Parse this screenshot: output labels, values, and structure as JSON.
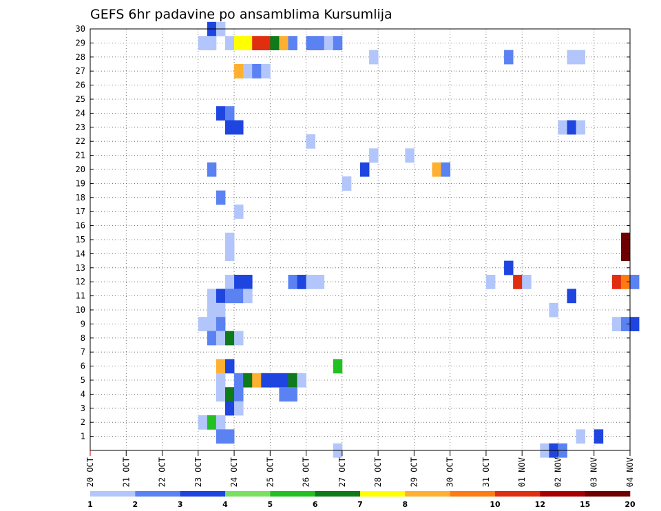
{
  "chart_data": {
    "type": "heatmap",
    "title": "GEFS 6hr padavine po ansamblima Kursumlija",
    "xlabel": "",
    "ylabel": "",
    "x_tick_labels": [
      "20 OCT",
      "21 OCT",
      "22 OCT",
      "23 OCT",
      "24 OCT",
      "25 OCT",
      "26 OCT",
      "27 OCT",
      "28 OCT",
      "29 OCT",
      "30 OCT",
      "31 OCT",
      "01 NOV",
      "02 NOV",
      "03 NOV",
      "04 NOV"
    ],
    "y_tick_labels": [
      "1",
      "2",
      "3",
      "4",
      "5",
      "6",
      "7",
      "8",
      "9",
      "10",
      "11",
      "12",
      "13",
      "14",
      "15",
      "16",
      "17",
      "18",
      "19",
      "20",
      "21",
      "22",
      "23",
      "24",
      "25",
      "26",
      "27",
      "28",
      "29",
      "30"
    ],
    "x_range": [
      "20 OCT 00h",
      "04 NOV 00h"
    ],
    "y_range": [
      0,
      30
    ],
    "grid": true,
    "colorbar": {
      "labels": [
        "1",
        "2",
        "3",
        "4",
        "5",
        "6",
        "7",
        "8",
        "10",
        "12",
        "15",
        "20"
      ],
      "colors": [
        "#b3c6fb",
        "#5b82f3",
        "#1f45e0",
        "#7be062",
        "#22c022",
        "#0e7a1a",
        "#ffff00",
        "#ffb030",
        "#ff7a10",
        "#e02e10",
        "#a80000",
        "#6e0000"
      ]
    },
    "cells_note": "each cell: [date-hour of 6h period start, ensemble member, precipitation class index 0-11 (0 = 1-2 mm ... 11 = >20 mm)]",
    "cells": [
      [
        "23 OCT 06h",
        30,
        2
      ],
      [
        "23 OCT 12h",
        30,
        0
      ],
      [
        "23 OCT 00h",
        29,
        0
      ],
      [
        "23 OCT 06h",
        29,
        0
      ],
      [
        "23 OCT 18h",
        29,
        0
      ],
      [
        "24 OCT 00h",
        29,
        6
      ],
      [
        "24 OCT 06h",
        29,
        6
      ],
      [
        "24 OCT 12h",
        29,
        9
      ],
      [
        "24 OCT 18h",
        29,
        9
      ],
      [
        "25 OCT 00h",
        29,
        5
      ],
      [
        "25 OCT 06h",
        29,
        7
      ],
      [
        "25 OCT 12h",
        29,
        1
      ],
      [
        "26 OCT 00h",
        29,
        1
      ],
      [
        "26 OCT 06h",
        29,
        1
      ],
      [
        "26 OCT 12h",
        29,
        0
      ],
      [
        "26 OCT 18h",
        29,
        1
      ],
      [
        "27 OCT 18h",
        28,
        0
      ],
      [
        "31 OCT 12h",
        28,
        1
      ],
      [
        "02 NOV 06h",
        28,
        0
      ],
      [
        "02 NOV 12h",
        28,
        0
      ],
      [
        "24 OCT 00h",
        27,
        7
      ],
      [
        "24 OCT 06h",
        27,
        0
      ],
      [
        "24 OCT 12h",
        27,
        1
      ],
      [
        "24 OCT 18h",
        27,
        0
      ],
      [
        "23 OCT 12h",
        24,
        2
      ],
      [
        "23 OCT 18h",
        24,
        1
      ],
      [
        "23 OCT 18h",
        23,
        2
      ],
      [
        "24 OCT 00h",
        23,
        2
      ],
      [
        "02 NOV 00h",
        23,
        0
      ],
      [
        "02 NOV 06h",
        23,
        2
      ],
      [
        "02 NOV 12h",
        23,
        0
      ],
      [
        "26 OCT 00h",
        22,
        0
      ],
      [
        "27 OCT 18h",
        21,
        0
      ],
      [
        "28 OCT 18h",
        21,
        0
      ],
      [
        "23 OCT 06h",
        20,
        1
      ],
      [
        "27 OCT 12h",
        20,
        2
      ],
      [
        "29 OCT 12h",
        20,
        7
      ],
      [
        "29 OCT 18h",
        20,
        1
      ],
      [
        "27 OCT 00h",
        19,
        0
      ],
      [
        "23 OCT 12h",
        18,
        1
      ],
      [
        "24 OCT 00h",
        17,
        0
      ],
      [
        "23 OCT 18h",
        15,
        0
      ],
      [
        "03 NOV 18h",
        15,
        11
      ],
      [
        "23 OCT 18h",
        14,
        0
      ],
      [
        "03 NOV 18h",
        14,
        11
      ],
      [
        "31 OCT 12h",
        13,
        2
      ],
      [
        "23 OCT 18h",
        12,
        0
      ],
      [
        "24 OCT 00h",
        12,
        2
      ],
      [
        "24 OCT 06h",
        12,
        2
      ],
      [
        "25 OCT 12h",
        12,
        1
      ],
      [
        "25 OCT 18h",
        12,
        2
      ],
      [
        "26 OCT 00h",
        12,
        0
      ],
      [
        "26 OCT 06h",
        12,
        0
      ],
      [
        "31 OCT 00h",
        12,
        0
      ],
      [
        "31 OCT 18h",
        12,
        9
      ],
      [
        "01 NOV 00h",
        12,
        0
      ],
      [
        "03 NOV 12h",
        12,
        9
      ],
      [
        "03 NOV 18h",
        12,
        8
      ],
      [
        "04 NOV 00h",
        12,
        1
      ],
      [
        "23 OCT 06h",
        11,
        0
      ],
      [
        "23 OCT 12h",
        11,
        2
      ],
      [
        "23 OCT 18h",
        11,
        1
      ],
      [
        "24 OCT 00h",
        11,
        1
      ],
      [
        "24 OCT 06h",
        11,
        0
      ],
      [
        "02 NOV 06h",
        11,
        2
      ],
      [
        "23 OCT 06h",
        10,
        0
      ],
      [
        "23 OCT 12h",
        10,
        0
      ],
      [
        "01 NOV 18h",
        10,
        0
      ],
      [
        "23 OCT 00h",
        9,
        0
      ],
      [
        "23 OCT 06h",
        9,
        0
      ],
      [
        "23 OCT 12h",
        9,
        1
      ],
      [
        "03 NOV 12h",
        9,
        0
      ],
      [
        "03 NOV 18h",
        9,
        1
      ],
      [
        "04 NOV 00h",
        9,
        2
      ],
      [
        "23 OCT 06h",
        8,
        1
      ],
      [
        "23 OCT 12h",
        8,
        0
      ],
      [
        "23 OCT 18h",
        8,
        5
      ],
      [
        "24 OCT 00h",
        8,
        0
      ],
      [
        "23 OCT 12h",
        6,
        7
      ],
      [
        "23 OCT 18h",
        6,
        2
      ],
      [
        "26 OCT 18h",
        6,
        4
      ],
      [
        "23 OCT 12h",
        5,
        0
      ],
      [
        "24 OCT 00h",
        5,
        1
      ],
      [
        "24 OCT 06h",
        5,
        5
      ],
      [
        "24 OCT 12h",
        5,
        7
      ],
      [
        "24 OCT 18h",
        5,
        2
      ],
      [
        "25 OCT 00h",
        5,
        2
      ],
      [
        "25 OCT 06h",
        5,
        2
      ],
      [
        "25 OCT 12h",
        5,
        5
      ],
      [
        "25 OCT 18h",
        5,
        0
      ],
      [
        "23 OCT 12h",
        4,
        0
      ],
      [
        "23 OCT 18h",
        4,
        5
      ],
      [
        "24 OCT 00h",
        4,
        1
      ],
      [
        "25 OCT 06h",
        4,
        1
      ],
      [
        "25 OCT 12h",
        4,
        1
      ],
      [
        "23 OCT 18h",
        3,
        2
      ],
      [
        "24 OCT 00h",
        3,
        0
      ],
      [
        "23 OCT 00h",
        2,
        0
      ],
      [
        "23 OCT 06h",
        2,
        4
      ],
      [
        "23 OCT 12h",
        2,
        0
      ],
      [
        "23 OCT 12h",
        1,
        1
      ],
      [
        "23 OCT 18h",
        1,
        1
      ],
      [
        "02 NOV 12h",
        1,
        0
      ],
      [
        "03 NOV 00h",
        1,
        2
      ],
      [
        "26 OCT 18h",
        0,
        0
      ],
      [
        "01 NOV 12h",
        0,
        0
      ],
      [
        "01 NOV 18h",
        0,
        2
      ],
      [
        "02 NOV 00h",
        0,
        1
      ]
    ]
  }
}
